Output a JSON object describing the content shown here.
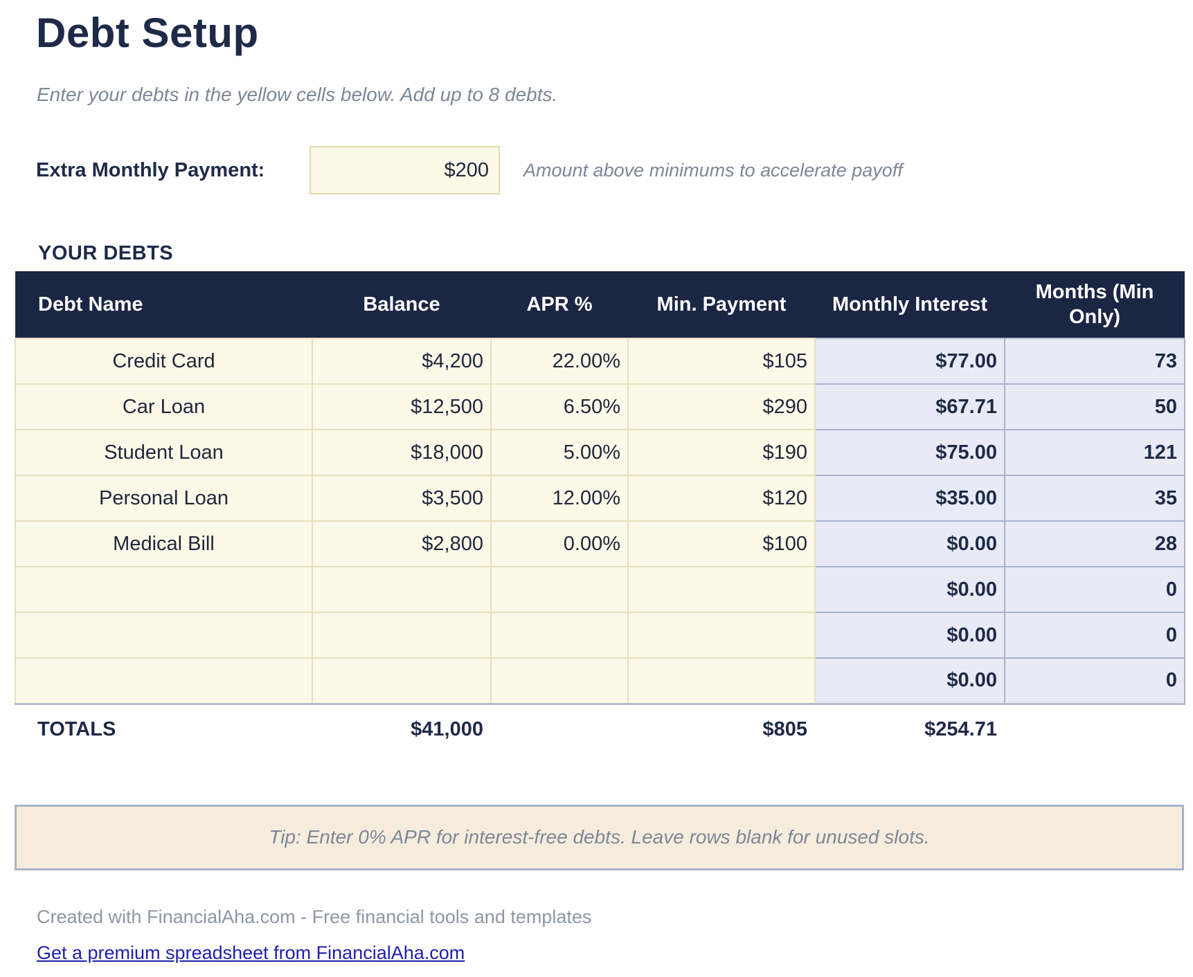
{
  "page": {
    "title": "Debt Setup",
    "subtitle": "Enter your debts in the yellow cells below. Add up to 8 debts."
  },
  "extra_payment": {
    "label": "Extra Monthly Payment:",
    "value": "$200",
    "note": "Amount above minimums to accelerate payoff"
  },
  "debts_section": {
    "heading": "YOUR DEBTS",
    "table": {
      "columns": [
        "Debt Name",
        "Balance",
        "APR %",
        "Min. Payment",
        "Monthly Interest",
        "Months (Min Only)"
      ],
      "rows": [
        {
          "name": "Credit Card",
          "balance": "$4,200",
          "apr": "22.00%",
          "min_payment": "$105",
          "monthly_interest": "$77.00",
          "months": "73"
        },
        {
          "name": "Car Loan",
          "balance": "$12,500",
          "apr": "6.50%",
          "min_payment": "$290",
          "monthly_interest": "$67.71",
          "months": "50"
        },
        {
          "name": "Student Loan",
          "balance": "$18,000",
          "apr": "5.00%",
          "min_payment": "$190",
          "monthly_interest": "$75.00",
          "months": "121"
        },
        {
          "name": "Personal Loan",
          "balance": "$3,500",
          "apr": "12.00%",
          "min_payment": "$120",
          "monthly_interest": "$35.00",
          "months": "35"
        },
        {
          "name": "Medical Bill",
          "balance": "$2,800",
          "apr": "0.00%",
          "min_payment": "$100",
          "monthly_interest": "$0.00",
          "months": "28"
        },
        {
          "name": "",
          "balance": "",
          "apr": "",
          "min_payment": "",
          "monthly_interest": "$0.00",
          "months": "0"
        },
        {
          "name": "",
          "balance": "",
          "apr": "",
          "min_payment": "",
          "monthly_interest": "$0.00",
          "months": "0"
        },
        {
          "name": "",
          "balance": "",
          "apr": "",
          "min_payment": "",
          "monthly_interest": "$0.00",
          "months": "0"
        }
      ],
      "totals": {
        "label": "TOTALS",
        "balance": "$41,000",
        "min_payment": "$805",
        "monthly_interest": "$254.71"
      }
    }
  },
  "tip": "Tip: Enter 0% APR for interest-free debts. Leave rows blank for unused slots.",
  "footer": {
    "credit": "Created with FinancialAha.com - Free financial tools and templates",
    "link": "Get a premium spreadsheet from FinancialAha.com"
  },
  "colors": {
    "header_navy": "#1a2643",
    "text_navy": "#1e2a47",
    "input_cell_bg": "#fdf9e9",
    "input_cell_border": "#e6debe",
    "calc_cell_bg": "#e8ebf5",
    "calc_cell_border": "#a9b2cc",
    "tip_bg": "#f6ecdd",
    "tip_border": "#a9b4c8",
    "muted_gray": "#7d8796",
    "link_blue": "#1f1fae"
  }
}
